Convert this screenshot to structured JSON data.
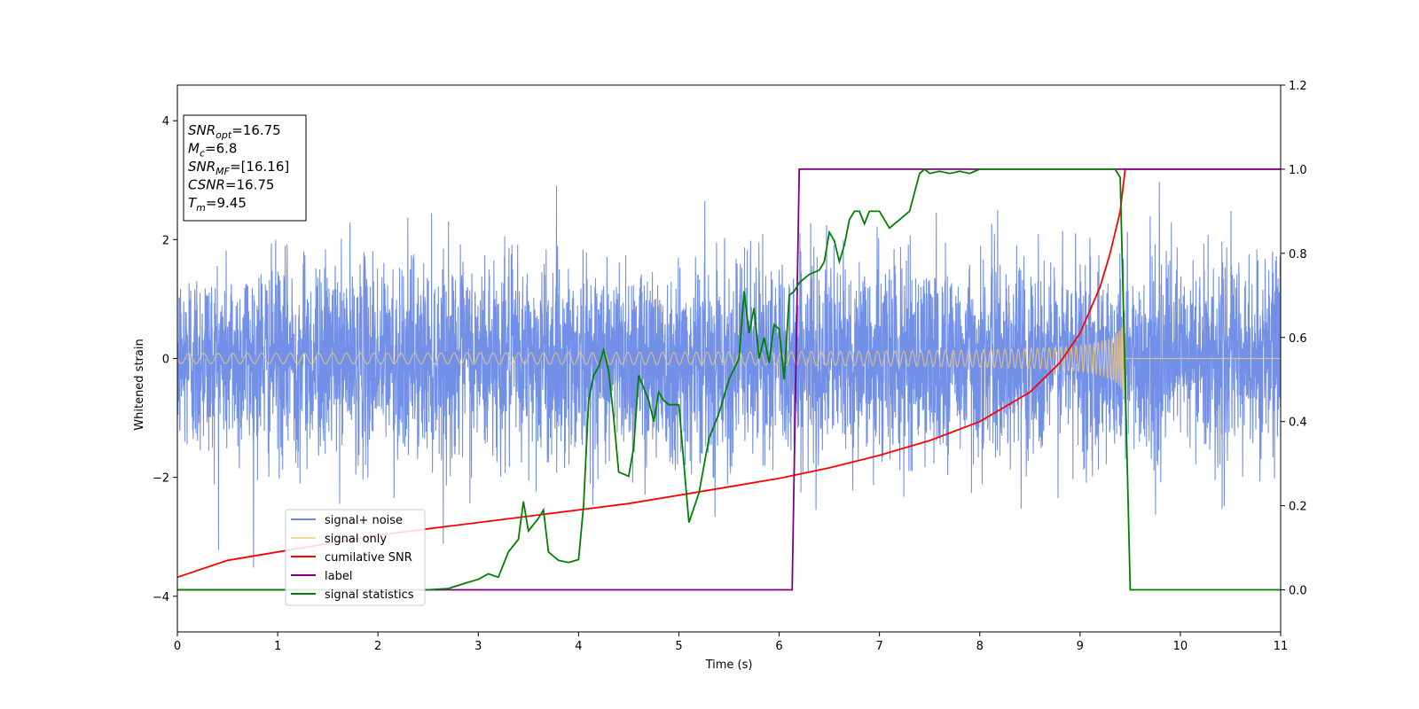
{
  "chart_data": {
    "type": "line",
    "xlabel": "Time (s)",
    "ylabel": "Whitened strain",
    "xlim": [
      0,
      11
    ],
    "ylim": [
      -4.6,
      4.6
    ],
    "y2lim": [
      -0.1,
      1.2
    ],
    "x_ticks": [
      0,
      1,
      2,
      3,
      4,
      5,
      6,
      7,
      8,
      9,
      10,
      11
    ],
    "y_ticks": [
      -4,
      -2,
      0,
      2,
      4
    ],
    "y2_ticks": [
      "0.0",
      "0.2",
      "0.4",
      "0.6",
      "0.8",
      "1.0",
      "1.2"
    ],
    "legend_position": "lower-left",
    "info_box": [
      {
        "base": "SNR",
        "sub": "opt",
        "value": "=16.75"
      },
      {
        "base": "M",
        "sub": "c",
        "value": "=6.8"
      },
      {
        "base": "SNR",
        "sub": "MF",
        "value": "=[16.16]"
      },
      {
        "base": "CSNR",
        "sub": "",
        "value": "=16.75"
      },
      {
        "base": "T",
        "sub": "m",
        "value": "=9.45"
      }
    ],
    "series": [
      {
        "name": "signal+ noise",
        "color": "#6a8ae6",
        "axis": "left",
        "kind": "noise",
        "noise_std": 1.0,
        "merger_time": 9.45,
        "peak_amplitude": 1.15
      },
      {
        "name": "signal only",
        "color": "#f5c97a",
        "axis": "left",
        "kind": "chirp",
        "merger_time": 9.45,
        "peak_amplitude": 1.15
      },
      {
        "name": "cumilative SNR",
        "color": "#ff0000",
        "axis": "right",
        "kind": "line",
        "x": [
          0,
          0.5,
          1,
          1.5,
          2,
          2.5,
          3,
          3.5,
          4,
          4.5,
          5,
          5.5,
          6,
          6.5,
          7,
          7.5,
          8,
          8.5,
          8.8,
          9,
          9.2,
          9.3,
          9.4,
          9.45,
          10,
          11
        ],
        "y": [
          0.03,
          0.07,
          0.09,
          0.11,
          0.13,
          0.145,
          0.16,
          0.175,
          0.19,
          0.205,
          0.225,
          0.245,
          0.265,
          0.29,
          0.32,
          0.355,
          0.4,
          0.47,
          0.54,
          0.61,
          0.72,
          0.8,
          0.9,
          1.0,
          1.0,
          1.0
        ]
      },
      {
        "name": "label",
        "color": "#800080",
        "axis": "right",
        "kind": "line",
        "x": [
          0,
          6.13,
          6.2,
          9.45,
          11
        ],
        "y": [
          0,
          0,
          1,
          1,
          1
        ]
      },
      {
        "name": "signal statistics",
        "color": "#008000",
        "axis": "right",
        "kind": "line",
        "x": [
          0,
          2.5,
          2.7,
          2.9,
          3.0,
          3.1,
          3.2,
          3.3,
          3.4,
          3.45,
          3.5,
          3.6,
          3.65,
          3.7,
          3.8,
          3.9,
          4.0,
          4.05,
          4.1,
          4.15,
          4.2,
          4.25,
          4.3,
          4.35,
          4.4,
          4.5,
          4.55,
          4.6,
          4.7,
          4.75,
          4.8,
          4.85,
          4.9,
          5.0,
          5.05,
          5.1,
          5.2,
          5.3,
          5.4,
          5.5,
          5.6,
          5.65,
          5.7,
          5.75,
          5.8,
          5.85,
          5.9,
          5.95,
          6.0,
          6.05,
          6.1,
          6.15,
          6.2,
          6.3,
          6.4,
          6.45,
          6.5,
          6.55,
          6.6,
          6.65,
          6.7,
          6.75,
          6.8,
          6.85,
          6.9,
          6.95,
          7.0,
          7.1,
          7.15,
          7.2,
          7.25,
          7.3,
          7.4,
          7.45,
          7.5,
          7.6,
          7.7,
          7.8,
          7.9,
          8.0,
          8.2,
          8.5,
          8.8,
          9.0,
          9.2,
          9.35,
          9.4,
          9.45,
          9.5,
          9.55,
          11
        ],
        "y": [
          0,
          0,
          0.003,
          0.018,
          0.025,
          0.038,
          0.03,
          0.09,
          0.12,
          0.21,
          0.14,
          0.17,
          0.19,
          0.09,
          0.07,
          0.065,
          0.072,
          0.2,
          0.45,
          0.51,
          0.53,
          0.57,
          0.52,
          0.41,
          0.28,
          0.27,
          0.34,
          0.51,
          0.45,
          0.4,
          0.47,
          0.45,
          0.44,
          0.44,
          0.3,
          0.16,
          0.23,
          0.36,
          0.42,
          0.5,
          0.55,
          0.71,
          0.61,
          0.67,
          0.55,
          0.6,
          0.54,
          0.63,
          0.62,
          0.5,
          0.7,
          0.71,
          0.73,
          0.75,
          0.76,
          0.78,
          0.85,
          0.83,
          0.78,
          0.82,
          0.88,
          0.9,
          0.9,
          0.87,
          0.9,
          0.9,
          0.9,
          0.86,
          0.87,
          0.88,
          0.89,
          0.9,
          0.99,
          1.0,
          0.99,
          0.995,
          0.99,
          0.995,
          0.99,
          1.0,
          1.0,
          1.0,
          1.0,
          1.0,
          1.0,
          1.0,
          0.98,
          0.5,
          0.0,
          0.0,
          0.0
        ]
      }
    ]
  }
}
